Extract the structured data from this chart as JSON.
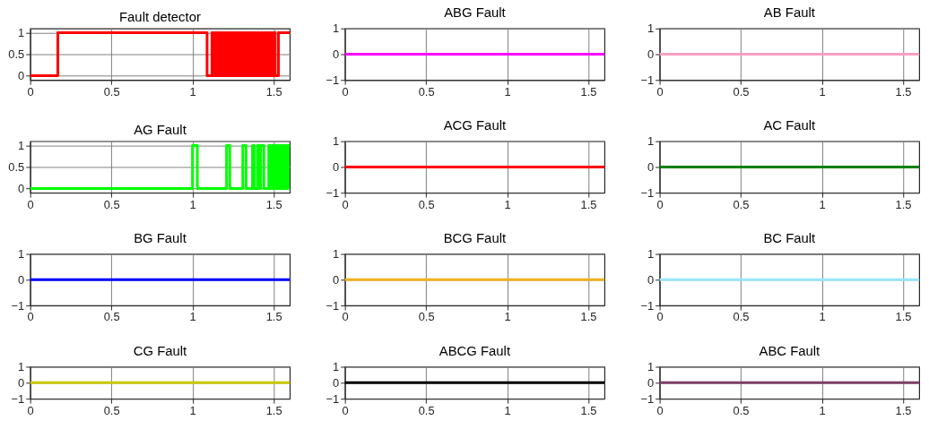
{
  "chart_data": [
    {
      "type": "step",
      "title": "Fault detector",
      "x": [
        0,
        0.17,
        1.09,
        1.12,
        1.13,
        1.14,
        1.15,
        1.16,
        1.17,
        1.18,
        1.19,
        1.2,
        1.21,
        1.22,
        1.23,
        1.24,
        1.25,
        1.26,
        1.27,
        1.28,
        1.29,
        1.3,
        1.31,
        1.32,
        1.33,
        1.34,
        1.35,
        1.36,
        1.37,
        1.38,
        1.39,
        1.4,
        1.41,
        1.42,
        1.43,
        1.44,
        1.45,
        1.46,
        1.47,
        1.48,
        1.49,
        1.5,
        1.51,
        1.53,
        1.6
      ],
      "values": [
        0,
        1,
        0,
        1,
        0,
        1,
        0,
        1,
        0,
        1,
        0,
        1,
        0,
        1,
        0,
        1,
        0,
        1,
        0,
        1,
        0,
        1,
        0,
        1,
        0,
        1,
        0,
        1,
        0,
        1,
        0,
        1,
        0,
        1,
        0,
        1,
        0,
        1,
        0,
        1,
        0,
        1,
        0,
        1,
        1
      ],
      "color": "#ff0000",
      "xlim": [
        0,
        1.6
      ],
      "xticks": [
        0,
        0.5,
        1,
        1.5
      ],
      "ylim": [
        -0.1,
        1.1
      ],
      "yticks": [
        0,
        0.5,
        1
      ],
      "grid": true
    },
    {
      "type": "line",
      "title": "ABG Fault",
      "x": [
        0,
        1.6
      ],
      "values": [
        0,
        0
      ],
      "color": "#ff00ff",
      "xlim": [
        0,
        1.6
      ],
      "xticks": [
        0,
        0.5,
        1,
        1.5
      ],
      "ylim": [
        -1,
        1
      ],
      "yticks": [
        -1,
        0,
        1
      ],
      "grid": true
    },
    {
      "type": "line",
      "title": "AB Fault",
      "x": [
        0,
        1.6
      ],
      "values": [
        0,
        0
      ],
      "color": "#f7a0c0",
      "xlim": [
        0,
        1.6
      ],
      "xticks": [
        0,
        0.5,
        1,
        1.5
      ],
      "ylim": [
        -1,
        1
      ],
      "yticks": [
        -1,
        0,
        1
      ],
      "grid": true
    },
    {
      "type": "step",
      "title": "AG Fault",
      "x": [
        0,
        1.0,
        1.03,
        1.21,
        1.23,
        1.31,
        1.33,
        1.37,
        1.38,
        1.4,
        1.41,
        1.42,
        1.44,
        1.47,
        1.48,
        1.49,
        1.5,
        1.51,
        1.52,
        1.53,
        1.54,
        1.55,
        1.56,
        1.57,
        1.58,
        1.59,
        1.6
      ],
      "values": [
        0,
        1,
        0,
        1,
        0,
        1,
        0,
        1,
        0,
        1,
        0,
        1,
        0,
        1,
        0,
        1,
        0,
        1,
        0,
        1,
        0,
        1,
        0,
        1,
        0,
        1,
        1
      ],
      "color": "#00ff00",
      "xlim": [
        0,
        1.6
      ],
      "xticks": [
        0,
        0.5,
        1,
        1.5
      ],
      "ylim": [
        -0.1,
        1.1
      ],
      "yticks": [
        0,
        0.5,
        1
      ],
      "grid": true
    },
    {
      "type": "line",
      "title": "ACG Fault",
      "x": [
        0,
        1.6
      ],
      "values": [
        0,
        0
      ],
      "color": "#ff0000",
      "xlim": [
        0,
        1.6
      ],
      "xticks": [
        0,
        0.5,
        1,
        1.5
      ],
      "ylim": [
        -1,
        1
      ],
      "yticks": [
        -1,
        0,
        1
      ],
      "grid": true
    },
    {
      "type": "line",
      "title": "AC Fault",
      "x": [
        0,
        1.6
      ],
      "values": [
        0,
        0
      ],
      "color": "#008000",
      "xlim": [
        0,
        1.6
      ],
      "xticks": [
        0,
        0.5,
        1,
        1.5
      ],
      "ylim": [
        -1,
        1
      ],
      "yticks": [
        -1,
        0,
        1
      ],
      "grid": true
    },
    {
      "type": "line",
      "title": "BG Fault",
      "x": [
        0,
        1.6
      ],
      "values": [
        0,
        0
      ],
      "color": "#0000ff",
      "xlim": [
        0,
        1.6
      ],
      "xticks": [
        0,
        0.5,
        1,
        1.5
      ],
      "ylim": [
        -1,
        1
      ],
      "yticks": [
        -1,
        0,
        1
      ],
      "grid": true
    },
    {
      "type": "line",
      "title": "BCG Fault",
      "x": [
        0,
        1.6
      ],
      "values": [
        0,
        0
      ],
      "color": "#edb120",
      "xlim": [
        0,
        1.6
      ],
      "xticks": [
        0,
        0.5,
        1,
        1.5
      ],
      "ylim": [
        -1,
        1
      ],
      "yticks": [
        -1,
        0,
        1
      ],
      "grid": true
    },
    {
      "type": "line",
      "title": "BC Fault",
      "x": [
        0,
        1.6
      ],
      "values": [
        0,
        0
      ],
      "color": "#99e6ff",
      "xlim": [
        0,
        1.6
      ],
      "xticks": [
        0,
        0.5,
        1,
        1.5
      ],
      "ylim": [
        -1,
        1
      ],
      "yticks": [
        -1,
        0,
        1
      ],
      "grid": true
    },
    {
      "type": "line",
      "title": "CG Fault",
      "x": [
        0,
        1.6
      ],
      "values": [
        0,
        0
      ],
      "color": "#c8c800",
      "xlim": [
        0,
        1.6
      ],
      "xticks": [
        0,
        0.5,
        1,
        1.5
      ],
      "ylim": [
        -1,
        1
      ],
      "yticks": [
        -1,
        0,
        1
      ],
      "grid": true
    },
    {
      "type": "line",
      "title": "ABCG Fault",
      "x": [
        0,
        1.6
      ],
      "values": [
        0,
        0
      ],
      "color": "#000000",
      "xlim": [
        0,
        1.6
      ],
      "xticks": [
        0,
        0.5,
        1,
        1.5
      ],
      "ylim": [
        -1,
        1
      ],
      "yticks": [
        -1,
        0,
        1
      ],
      "grid": true
    },
    {
      "type": "line",
      "title": "ABC Fault",
      "x": [
        0,
        1.6
      ],
      "values": [
        0,
        0
      ],
      "color": "#7e3f68",
      "xlim": [
        0,
        1.6
      ],
      "xticks": [
        0,
        0.5,
        1,
        1.5
      ],
      "ylim": [
        -1,
        1
      ],
      "yticks": [
        -1,
        0,
        1
      ],
      "grid": true
    }
  ]
}
